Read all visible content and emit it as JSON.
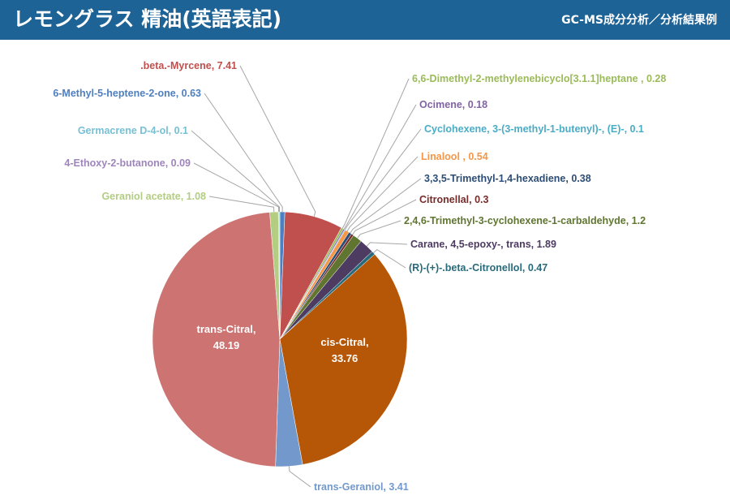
{
  "header": {
    "title": "レモングラス 精油(英語表記)",
    "subtitle": "GC-MS成分分析／分析結果例",
    "background_color": "#1d6396"
  },
  "chart_data": {
    "type": "pie",
    "slices": [
      {
        "label": "6-Methyl-5-heptene-2-one",
        "value": 0.63,
        "color": "#4e7fc0"
      },
      {
        "label": ".beta.-Myrcene",
        "value": 7.41,
        "color": "#c0504d"
      },
      {
        "label": "6,6-Dimethyl-2-methylenebicyclo[3.1.1]heptane ",
        "value": 0.28,
        "color": "#9bbb59"
      },
      {
        "label": "Ocimene",
        "value": 0.18,
        "color": "#8064a2"
      },
      {
        "label": "Cyclohexene, 3-(3-methyl-1-butenyl)-, (E)-",
        "value": 0.1,
        "color": "#4bacc6"
      },
      {
        "label": "Linalool ",
        "value": 0.54,
        "color": "#f79646"
      },
      {
        "label": "3,3,5-Trimethyl-1,4-hexadiene",
        "value": 0.38,
        "color": "#2c4d75"
      },
      {
        "label": "Citronellal",
        "value": 0.3,
        "color": "#772c2a"
      },
      {
        "label": "2,4,6-Trimethyl-3-cyclohexene-1-carbaldehyde",
        "value": 1.2,
        "color": "#5f7530"
      },
      {
        "label": "Carane, 4,5-epoxy-, trans",
        "value": 1.89,
        "color": "#4d3b62"
      },
      {
        "label": "(R)-(+)-.beta.-Citronellol",
        "value": 0.47,
        "color": "#276a7c"
      },
      {
        "label": "cis-Citral",
        "value": 33.76,
        "color": "#b65708"
      },
      {
        "label": "trans-Geraniol",
        "value": 3.41,
        "color": "#7399cc"
      },
      {
        "label": "trans-Citral",
        "value": 48.19,
        "color": "#cd7371"
      },
      {
        "label": "Geraniol acetate",
        "value": 1.08,
        "color": "#b3cd83"
      },
      {
        "label": "4-Ethoxy-2-butanone",
        "value": 0.09,
        "color": "#9e86bb"
      },
      {
        "label": "Germacrene D-4-ol",
        "value": 0.1,
        "color": "#78c0d4"
      }
    ]
  }
}
